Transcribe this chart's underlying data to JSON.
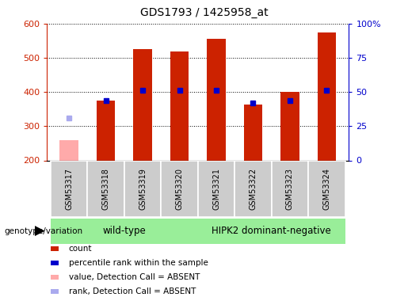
{
  "title": "GDS1793 / 1425958_at",
  "samples": [
    "GSM53317",
    "GSM53318",
    "GSM53319",
    "GSM53320",
    "GSM53321",
    "GSM53322",
    "GSM53323",
    "GSM53324"
  ],
  "count_values": [
    258,
    375,
    525,
    520,
    555,
    363,
    400,
    575
  ],
  "rank_values": [
    325,
    375,
    405,
    405,
    405,
    368,
    375,
    405
  ],
  "absent_flags": [
    true,
    false,
    false,
    false,
    false,
    false,
    false,
    false
  ],
  "ymin": 200,
  "ymax": 600,
  "yticks": [
    200,
    300,
    400,
    500,
    600
  ],
  "right_yticks": [
    0,
    25,
    50,
    75,
    100
  ],
  "right_ytick_labels": [
    "0",
    "25",
    "50",
    "75",
    "100%"
  ],
  "bar_color_present": "#cc2200",
  "bar_color_absent": "#ffaaaa",
  "rank_color_present": "#0000cc",
  "rank_color_absent": "#aaaaee",
  "bar_width": 0.5,
  "group1_label": "wild-type",
  "group2_label": "HIPK2 dominant-negative",
  "group_bg_color": "#99ee99",
  "sample_box_color": "#cccccc",
  "xlabel_color": "#cc2200",
  "ylabel_right_color": "#0000cc",
  "legend_items": [
    {
      "label": "count",
      "color": "#cc2200"
    },
    {
      "label": "percentile rank within the sample",
      "color": "#0000cc"
    },
    {
      "label": "value, Detection Call = ABSENT",
      "color": "#ffaaaa"
    },
    {
      "label": "rank, Detection Call = ABSENT",
      "color": "#aaaaee"
    }
  ],
  "genotype_label": "genotype/variation",
  "figsize": [
    5.15,
    3.75
  ],
  "dpi": 100
}
